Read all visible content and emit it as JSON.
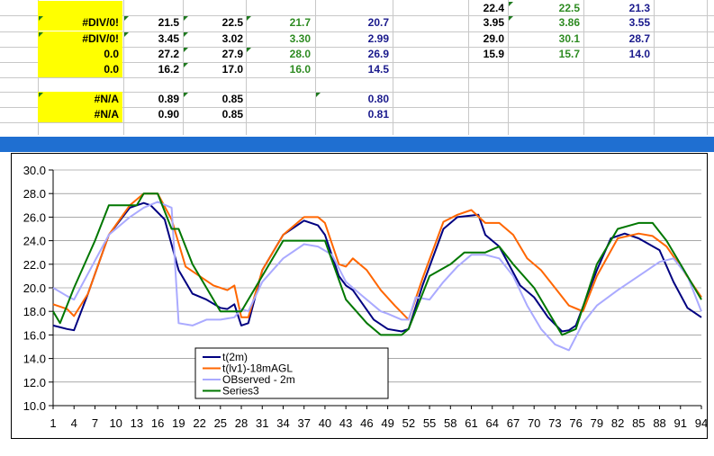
{
  "sheet": {
    "rows": [
      {
        "cells": [
          {
            "text": "",
            "col": "a",
            "style": "yellow"
          },
          {
            "text": "",
            "col": "b",
            "style": "black"
          },
          {
            "text": "",
            "col": "c",
            "style": "black"
          },
          {
            "text": "",
            "col": "d",
            "style": "green"
          },
          {
            "text": "",
            "col": "e",
            "style": "navy"
          },
          {
            "text": "22.4",
            "col": "f",
            "style": "black"
          },
          {
            "text": "22.5",
            "col": "g",
            "style": "green"
          },
          {
            "text": "21.3",
            "col": "h",
            "style": "navy"
          }
        ]
      },
      {
        "cells": [
          {
            "text": "#DIV/0!",
            "col": "a",
            "style": "yellow"
          },
          {
            "text": "21.5",
            "col": "b",
            "style": "black"
          },
          {
            "text": "22.5",
            "col": "c",
            "style": "black"
          },
          {
            "text": "21.7",
            "col": "d",
            "style": "green"
          },
          {
            "text": "20.7",
            "col": "e",
            "style": "navy"
          },
          {
            "text": "3.95",
            "col": "f",
            "style": "black"
          },
          {
            "text": "3.86",
            "col": "g",
            "style": "green"
          },
          {
            "text": "3.55",
            "col": "h",
            "style": "navy"
          }
        ]
      },
      {
        "cells": [
          {
            "text": "#DIV/0!",
            "col": "a",
            "style": "yellow"
          },
          {
            "text": "3.45",
            "col": "b",
            "style": "black"
          },
          {
            "text": "3.02",
            "col": "c",
            "style": "black"
          },
          {
            "text": "3.30",
            "col": "d",
            "style": "green"
          },
          {
            "text": "2.99",
            "col": "e",
            "style": "navy"
          },
          {
            "text": "29.0",
            "col": "f",
            "style": "black"
          },
          {
            "text": "30.1",
            "col": "g",
            "style": "green"
          },
          {
            "text": "28.7",
            "col": "h",
            "style": "navy"
          }
        ]
      },
      {
        "cells": [
          {
            "text": "0.0",
            "col": "a",
            "style": "yellow"
          },
          {
            "text": "27.2",
            "col": "b",
            "style": "black"
          },
          {
            "text": "27.9",
            "col": "c",
            "style": "black"
          },
          {
            "text": "28.0",
            "col": "d",
            "style": "green"
          },
          {
            "text": "26.9",
            "col": "e",
            "style": "navy"
          },
          {
            "text": "15.9",
            "col": "f",
            "style": "black"
          },
          {
            "text": "15.7",
            "col": "g",
            "style": "green"
          },
          {
            "text": "14.0",
            "col": "h",
            "style": "navy"
          }
        ]
      },
      {
        "cells": [
          {
            "text": "0.0",
            "col": "a",
            "style": "yellow"
          },
          {
            "text": "16.2",
            "col": "b",
            "style": "black"
          },
          {
            "text": "17.0",
            "col": "c",
            "style": "black"
          },
          {
            "text": "16.0",
            "col": "d",
            "style": "green"
          },
          {
            "text": "14.5",
            "col": "e",
            "style": "navy"
          }
        ]
      },
      {
        "cells": []
      },
      {
        "cells": [
          {
            "text": "#N/A",
            "col": "a",
            "style": "yellow"
          },
          {
            "text": "0.89",
            "col": "b",
            "style": "black"
          },
          {
            "text": "0.85",
            "col": "c",
            "style": "black"
          },
          {
            "text": "0.80",
            "col": "e",
            "style": "navy"
          }
        ]
      },
      {
        "cells": [
          {
            "text": "#N/A",
            "col": "a",
            "style": "yellow"
          },
          {
            "text": "0.90",
            "col": "b",
            "style": "black"
          },
          {
            "text": "0.85",
            "col": "c",
            "style": "black"
          },
          {
            "text": "0.81",
            "col": "e",
            "style": "navy"
          }
        ]
      }
    ]
  },
  "colors": {
    "band": "#1f6fd1",
    "gridline": "#c8c8c8",
    "yellow": "#ffff00"
  },
  "chart_data": {
    "type": "line",
    "title": "",
    "xlabel": "",
    "ylabel": "",
    "ylim": [
      10.0,
      30.0
    ],
    "xlim": [
      1,
      94
    ],
    "yticks": [
      "10.0",
      "12.0",
      "14.0",
      "16.0",
      "18.0",
      "20.0",
      "22.0",
      "24.0",
      "26.0",
      "28.0",
      "30.0"
    ],
    "xticks": [
      "1",
      "4",
      "7",
      "10",
      "13",
      "16",
      "19",
      "22",
      "25",
      "28",
      "31",
      "34",
      "37",
      "40",
      "43",
      "46",
      "49",
      "52",
      "55",
      "58",
      "61",
      "64",
      "67",
      "70",
      "73",
      "76",
      "79",
      "82",
      "85",
      "88",
      "91",
      "94"
    ],
    "grid": "horizontal",
    "legend_placement": "bottom-center",
    "series": [
      {
        "name": "t(2m)",
        "color": "#000080",
        "points": [
          [
            1,
            16.8
          ],
          [
            3,
            16.5
          ],
          [
            4,
            16.4
          ],
          [
            6,
            19.5
          ],
          [
            9,
            24.5
          ],
          [
            12,
            26.8
          ],
          [
            14,
            27.2
          ],
          [
            15,
            27.0
          ],
          [
            17,
            25.8
          ],
          [
            19,
            21.5
          ],
          [
            21,
            19.5
          ],
          [
            23,
            19.0
          ],
          [
            25,
            18.3
          ],
          [
            26,
            18.2
          ],
          [
            27,
            18.6
          ],
          [
            28,
            16.8
          ],
          [
            29,
            17.0
          ],
          [
            31,
            21.5
          ],
          [
            34,
            24.5
          ],
          [
            37,
            25.7
          ],
          [
            39,
            25.3
          ],
          [
            40,
            24.5
          ],
          [
            42,
            21.0
          ],
          [
            43,
            20.2
          ],
          [
            44,
            19.8
          ],
          [
            47,
            17.3
          ],
          [
            49,
            16.5
          ],
          [
            51,
            16.3
          ],
          [
            52,
            16.5
          ],
          [
            54,
            20.2
          ],
          [
            57,
            25.0
          ],
          [
            59,
            26.0
          ],
          [
            62,
            26.2
          ],
          [
            63,
            24.5
          ],
          [
            65,
            23.5
          ],
          [
            68,
            20.2
          ],
          [
            70,
            19.2
          ],
          [
            72,
            17.5
          ],
          [
            74,
            16.3
          ],
          [
            75,
            16.4
          ],
          [
            76,
            16.8
          ],
          [
            79,
            21.5
          ],
          [
            81,
            24.2
          ],
          [
            83,
            24.6
          ],
          [
            85,
            24.2
          ],
          [
            88,
            23.2
          ],
          [
            90,
            20.5
          ],
          [
            92,
            18.3
          ],
          [
            94,
            17.5
          ]
        ]
      },
      {
        "name": "t(lv1)-18mAGL",
        "color": "#ff6600",
        "points": [
          [
            1,
            18.6
          ],
          [
            3,
            18.2
          ],
          [
            4,
            17.6
          ],
          [
            6,
            19.5
          ],
          [
            9,
            24.5
          ],
          [
            12,
            27.0
          ],
          [
            14,
            28.0
          ],
          [
            16,
            28.0
          ],
          [
            18,
            25.8
          ],
          [
            20,
            21.8
          ],
          [
            22,
            21.0
          ],
          [
            24,
            20.2
          ],
          [
            26,
            19.8
          ],
          [
            27,
            20.2
          ],
          [
            28,
            17.5
          ],
          [
            29,
            17.5
          ],
          [
            31,
            21.5
          ],
          [
            34,
            24.5
          ],
          [
            37,
            26.0
          ],
          [
            39,
            26.0
          ],
          [
            40,
            25.5
          ],
          [
            42,
            22.0
          ],
          [
            43,
            21.8
          ],
          [
            44,
            22.5
          ],
          [
            46,
            21.5
          ],
          [
            48,
            19.8
          ],
          [
            50,
            18.5
          ],
          [
            52,
            17.3
          ],
          [
            54,
            20.8
          ],
          [
            57,
            25.6
          ],
          [
            59,
            26.2
          ],
          [
            61,
            26.6
          ],
          [
            63,
            25.5
          ],
          [
            65,
            25.5
          ],
          [
            67,
            24.5
          ],
          [
            69,
            22.5
          ],
          [
            71,
            21.5
          ],
          [
            73,
            20.0
          ],
          [
            75,
            18.5
          ],
          [
            77,
            18.0
          ],
          [
            79,
            21.0
          ],
          [
            82,
            24.2
          ],
          [
            85,
            24.6
          ],
          [
            87,
            24.4
          ],
          [
            89,
            23.5
          ],
          [
            91,
            21.8
          ],
          [
            94,
            19.2
          ]
        ]
      },
      {
        "name": "OBserved - 2m",
        "color": "#aaaaff",
        "points": [
          [
            1,
            20.0
          ],
          [
            3,
            19.3
          ],
          [
            4,
            19.0
          ],
          [
            6,
            21.2
          ],
          [
            9,
            24.5
          ],
          [
            12,
            26.0
          ],
          [
            14,
            26.8
          ],
          [
            16,
            27.3
          ],
          [
            18,
            26.8
          ],
          [
            19,
            17.0
          ],
          [
            21,
            16.8
          ],
          [
            23,
            17.3
          ],
          [
            25,
            17.3
          ],
          [
            27,
            17.5
          ],
          [
            28,
            18.2
          ],
          [
            29,
            18.0
          ],
          [
            31,
            20.5
          ],
          [
            34,
            22.5
          ],
          [
            37,
            23.7
          ],
          [
            39,
            23.5
          ],
          [
            41,
            22.8
          ],
          [
            43,
            20.5
          ],
          [
            45,
            19.5
          ],
          [
            48,
            18.0
          ],
          [
            49,
            17.8
          ],
          [
            51,
            17.3
          ],
          [
            52,
            17.3
          ],
          [
            53,
            19.2
          ],
          [
            55,
            19.0
          ],
          [
            57,
            20.5
          ],
          [
            59,
            21.8
          ],
          [
            61,
            22.8
          ],
          [
            63,
            22.8
          ],
          [
            65,
            22.5
          ],
          [
            67,
            21.0
          ],
          [
            69,
            18.5
          ],
          [
            71,
            16.5
          ],
          [
            73,
            15.2
          ],
          [
            75,
            14.7
          ],
          [
            77,
            17.0
          ],
          [
            79,
            18.5
          ],
          [
            82,
            19.8
          ],
          [
            85,
            21.0
          ],
          [
            88,
            22.2
          ],
          [
            90,
            22.5
          ],
          [
            92,
            21.0
          ],
          [
            94,
            18.0
          ]
        ]
      },
      {
        "name": "Series3",
        "color": "#007700",
        "points": [
          [
            1,
            18.0
          ],
          [
            2,
            17.0
          ],
          [
            4,
            20.0
          ],
          [
            7,
            24.0
          ],
          [
            9,
            27.0
          ],
          [
            11,
            27.0
          ],
          [
            13,
            27.0
          ],
          [
            14,
            28.0
          ],
          [
            16,
            28.0
          ],
          [
            18,
            25.0
          ],
          [
            19,
            25.0
          ],
          [
            21,
            22.0
          ],
          [
            23,
            20.0
          ],
          [
            25,
            18.0
          ],
          [
            27,
            18.0
          ],
          [
            28,
            18.0
          ],
          [
            31,
            21.0
          ],
          [
            34,
            24.0
          ],
          [
            37,
            24.0
          ],
          [
            40,
            24.0
          ],
          [
            43,
            19.0
          ],
          [
            46,
            17.0
          ],
          [
            48,
            16.0
          ],
          [
            51,
            16.0
          ],
          [
            52,
            16.5
          ],
          [
            55,
            21.0
          ],
          [
            58,
            22.0
          ],
          [
            60,
            23.0
          ],
          [
            63,
            23.0
          ],
          [
            65,
            23.5
          ],
          [
            67,
            22.0
          ],
          [
            70,
            20.0
          ],
          [
            72,
            18.0
          ],
          [
            74,
            16.0
          ],
          [
            76,
            16.5
          ],
          [
            79,
            22.0
          ],
          [
            82,
            25.0
          ],
          [
            85,
            25.5
          ],
          [
            87,
            25.5
          ],
          [
            89,
            24.0
          ],
          [
            91,
            22.0
          ],
          [
            94,
            19.0
          ]
        ]
      }
    ]
  }
}
